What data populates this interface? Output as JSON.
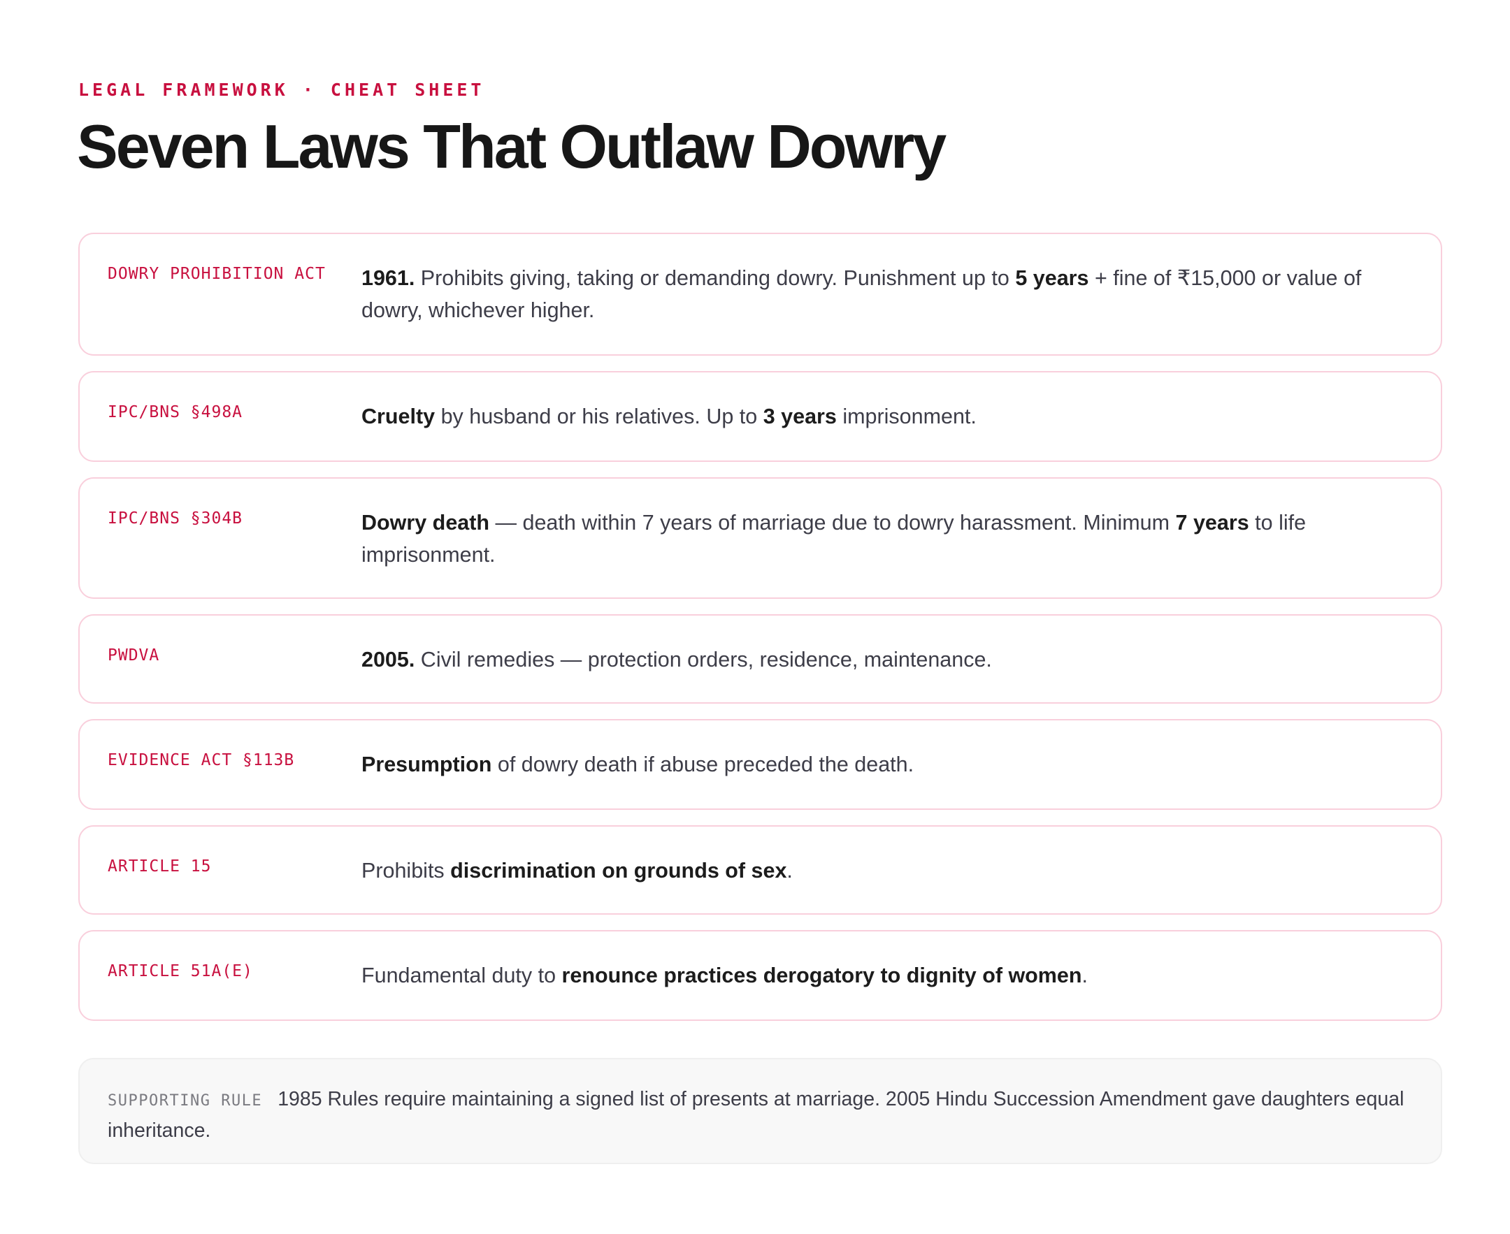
{
  "header": {
    "eyebrow": "LEGAL FRAMEWORK · CHEAT SHEET",
    "title": "Seven Laws That Outlaw Dowry"
  },
  "laws": [
    {
      "name": "DOWRY PROHIBITION ACT",
      "lead": "1961.",
      "text1": " Prohibits giving, taking or demanding dowry. Punishment up to ",
      "bold1": "5 years",
      "text2": " + fine of ₹15,000 or value of dowry, whichever higher."
    },
    {
      "name": "IPC/BNS §498A",
      "lead": "Cruelty",
      "text1": " by husband or his relatives. Up to ",
      "bold1": "3 years",
      "text2": " imprisonment."
    },
    {
      "name": "IPC/BNS §304B",
      "lead": "Dowry death",
      "text1": " — death within 7 years of marriage due to dowry harassment. Minimum ",
      "bold1": "7 years",
      "text2": " to life imprisonment."
    },
    {
      "name": "PWDVA",
      "lead": "2005.",
      "text1": " Civil remedies — protection orders, residence, maintenance."
    },
    {
      "name": "EVIDENCE ACT §113B",
      "lead": "Presumption",
      "text1": " of dowry death if abuse preceded the death."
    },
    {
      "name": "ARTICLE 15",
      "text1": "Prohibits ",
      "bold1": "discrimination on grounds of sex",
      "text2": "."
    },
    {
      "name": "ARTICLE 51A(E)",
      "text1": "Fundamental duty to ",
      "bold1": "renounce practices derogatory to dignity of women",
      "text2": "."
    }
  ],
  "supporting": {
    "label": "SUPPORTING RULE",
    "text": "1985 Rules require maintaining a signed list of presents at marriage. 2005 Hindu Succession Amendment gave daughters equal inheritance."
  },
  "colors": {
    "accent": "#c8103f",
    "card_border": "#f9cfdc",
    "body_text": "#3d3d48",
    "heading": "#171717",
    "note_bg": "#f8f8f8"
  }
}
